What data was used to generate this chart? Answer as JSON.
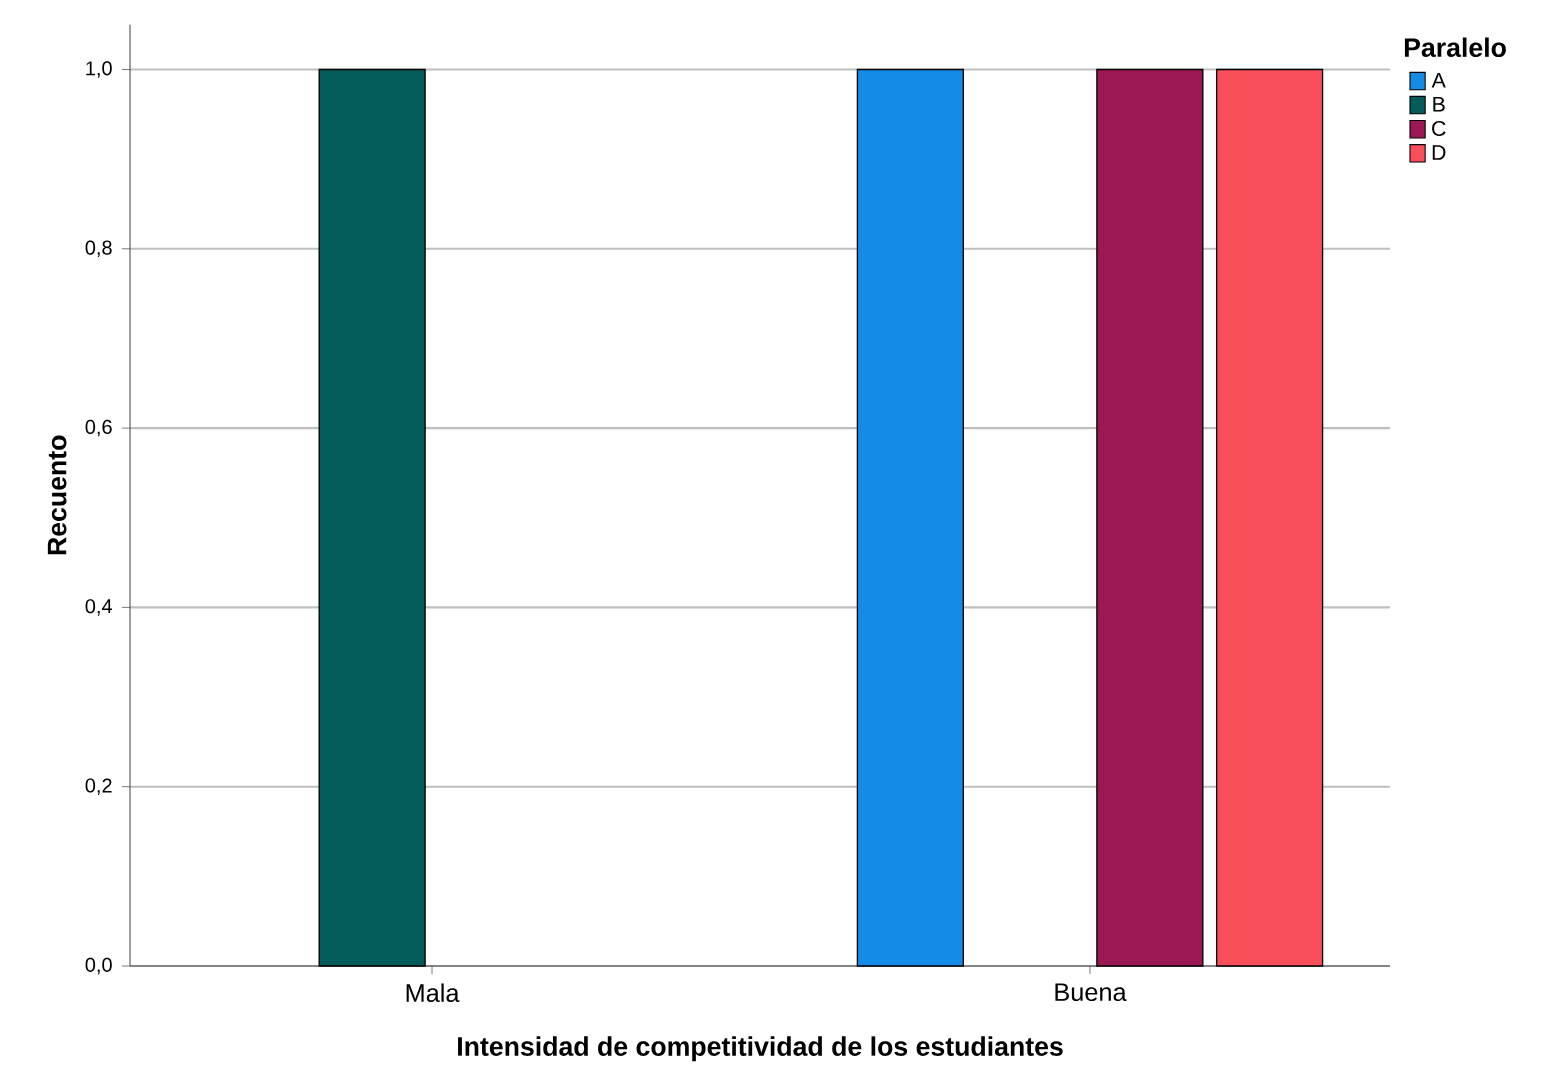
{
  "chart_data": {
    "type": "bar",
    "xlabel": "Intensidad de competitividad de los estudiantes",
    "ylabel": "Recuento",
    "legend_title": "Paralelo",
    "categories": [
      "Mala",
      "Buena"
    ],
    "series": [
      {
        "name": "A",
        "color": "#158be8",
        "values": [
          null,
          1
        ]
      },
      {
        "name": "B",
        "color": "#035c5a",
        "values": [
          1,
          null
        ]
      },
      {
        "name": "C",
        "color": "#9c1854",
        "values": [
          null,
          1
        ]
      },
      {
        "name": "D",
        "color": "#f84f5a",
        "values": [
          null,
          1
        ]
      }
    ],
    "ylim": [
      0,
      1.05
    ],
    "yticks": [
      {
        "value": 0,
        "label": "0,0"
      },
      {
        "value": 0.2,
        "label": "0,2"
      },
      {
        "value": 0.4,
        "label": "0,4"
      },
      {
        "value": 0.6,
        "label": "0,6"
      },
      {
        "value": 0.8,
        "label": "0,8"
      },
      {
        "value": 1,
        "label": "1,0"
      }
    ],
    "grid": "y",
    "legend": "top right"
  }
}
